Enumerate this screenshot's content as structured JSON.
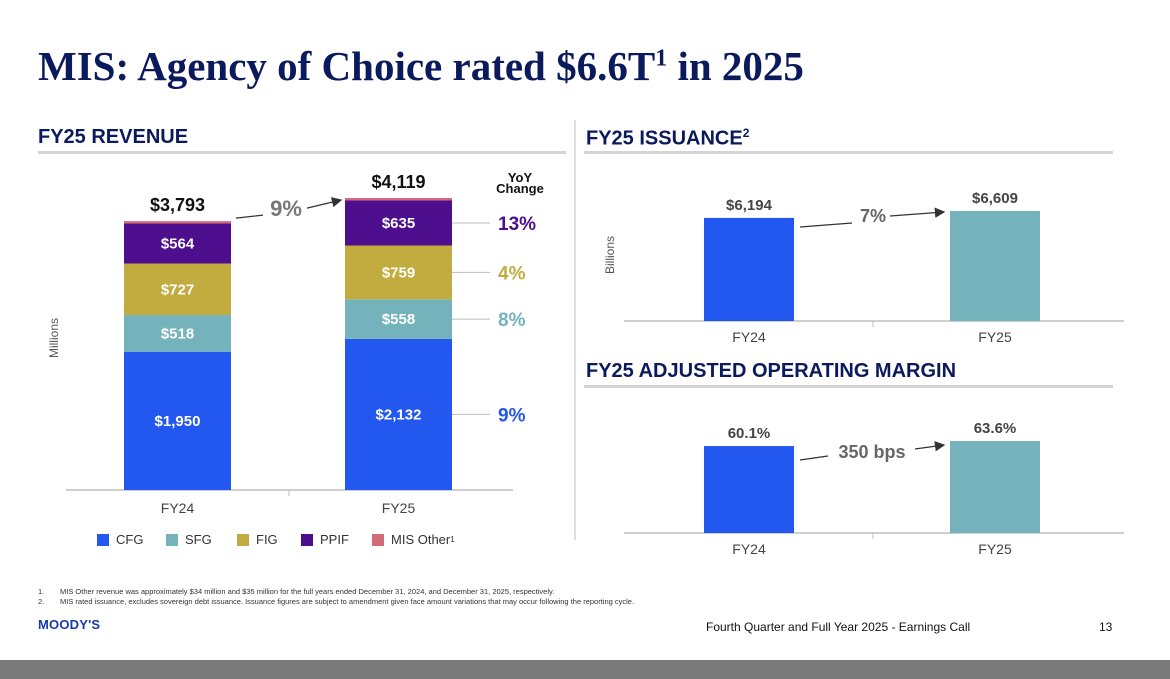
{
  "title": {
    "main": "MIS: Agency of Choice rated $6.6T",
    "sup": "1",
    "suffix": " in 2025"
  },
  "colors": {
    "navy": "#0b1a5c",
    "CFG": "#2257f0",
    "SFG": "#74b3bb",
    "FIG": "#c3ac3f",
    "PPIF": "#4e0f8f",
    "MIS Other": "#d26b7a",
    "fy24_bar": "#2257f0",
    "fy25_bar": "#74b3bb"
  },
  "chart_data": [
    {
      "id": "revenue",
      "type": "bar",
      "stacked": true,
      "title": "FY25 REVENUE",
      "ylabel": "Millions",
      "categories": [
        "FY24",
        "FY25"
      ],
      "series": [
        {
          "name": "CFG",
          "values": [
            1950,
            2132
          ],
          "labels": [
            "$1,950",
            "$2,132"
          ],
          "yoy": "9%"
        },
        {
          "name": "SFG",
          "values": [
            518,
            558
          ],
          "labels": [
            "$518",
            "$558"
          ],
          "yoy": "8%"
        },
        {
          "name": "FIG",
          "values": [
            727,
            759
          ],
          "labels": [
            "$727",
            "$759"
          ],
          "yoy": "4%"
        },
        {
          "name": "PPIF",
          "values": [
            564,
            635
          ],
          "labels": [
            "$564",
            "$635"
          ],
          "yoy": "13%"
        },
        {
          "name": "MIS Other",
          "values": [
            34,
            35
          ],
          "labels": [
            "",
            ""
          ],
          "yoy": ""
        }
      ],
      "totals": [
        3793,
        4119
      ],
      "total_labels": [
        "$3,793",
        "$4,119"
      ],
      "change_label": "9%",
      "yoy_header": [
        "YoY",
        "Change"
      ],
      "legend": [
        "CFG",
        "SFG",
        "FIG",
        "PPIF",
        "MIS Other"
      ],
      "legend_sup": "1",
      "ylim": [
        0,
        4119
      ]
    },
    {
      "id": "issuance",
      "type": "bar",
      "title": "FY25 ISSUANCE",
      "title_sup": "2",
      "ylabel": "Billions",
      "categories": [
        "FY24",
        "FY25"
      ],
      "values": [
        6194,
        6609
      ],
      "labels": [
        "$6,194",
        "$6,609"
      ],
      "change_label": "7%",
      "ylim": [
        0,
        6609
      ]
    },
    {
      "id": "margin",
      "type": "bar",
      "title": "FY25 ADJUSTED OPERATING MARGIN",
      "ylabel": "",
      "categories": [
        "FY24",
        "FY25"
      ],
      "values": [
        60.1,
        63.6
      ],
      "labels": [
        "60.1%",
        "63.6%"
      ],
      "change_label": "350 bps",
      "ylim": [
        0,
        63.6
      ]
    }
  ],
  "footnotes": [
    {
      "num": "1.",
      "text": "MIS Other revenue was approximately $34 million and $35 million for the full years ended December 31, 2024, and December 31, 2025, respectively."
    },
    {
      "num": "2.",
      "text": "MIS rated issuance, excludes sovereign debt issuance. Issuance figures are subject to amendment given face amount variations that may occur following the reporting cycle."
    }
  ],
  "footer": {
    "logo": "MOODY'S",
    "text": "Fourth Quarter and Full Year 2025 - Earnings Call",
    "page": "13"
  }
}
